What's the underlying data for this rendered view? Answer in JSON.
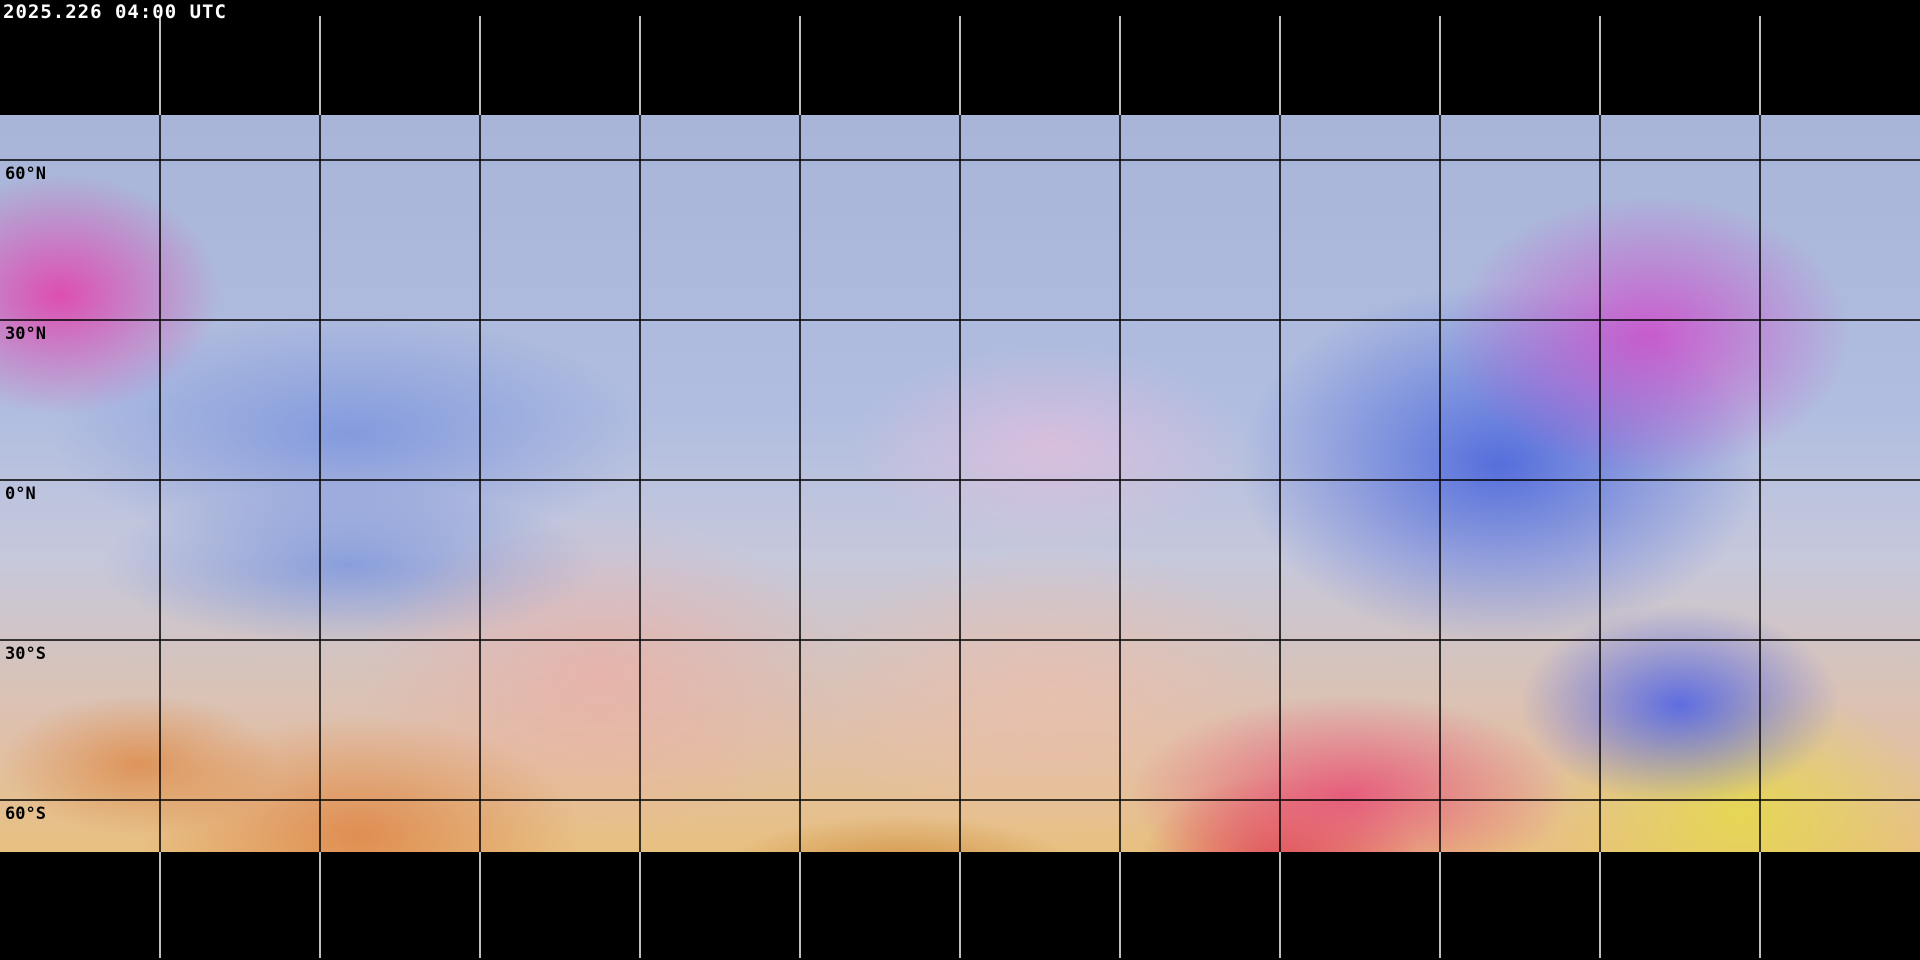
{
  "timestamp": "2025.226 04:00 UTC",
  "latitude_labels": [
    "60°N",
    "30°N",
    "0°N",
    "30°S",
    "60°S"
  ],
  "colors": {
    "background": "#000000",
    "grid_over_space": "#ffffff",
    "grid_over_imagery": "#000000",
    "coastline_polar": "#ffffff",
    "coastline_imagery": "#000000"
  }
}
